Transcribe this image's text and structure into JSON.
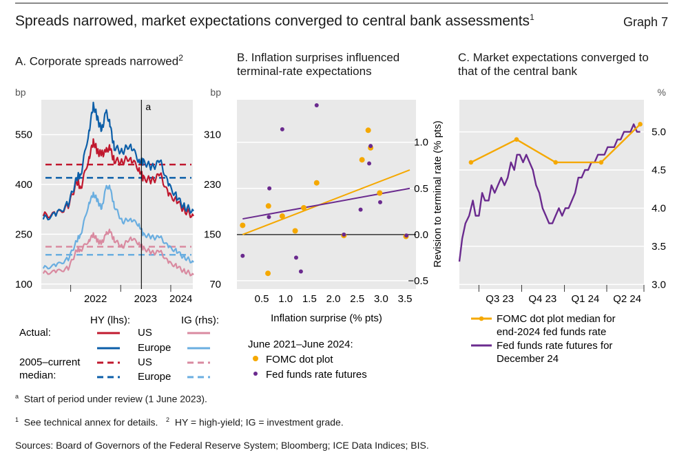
{
  "header": {
    "title": "Spreads narrowed, market expectations converged to central bank assessments",
    "title_sup": "1",
    "graph_label": "Graph 7"
  },
  "panelA": {
    "subtitle": "A. Corporate spreads narrowed",
    "subtitle_sup": "2",
    "left_unit": "bp",
    "right_unit": "bp",
    "annotation": "a",
    "legend": {
      "hy_header": "HY (lhs):",
      "ig_header": "IG (rhs):",
      "actual_label": "Actual:",
      "median_label_line1": "2005–current",
      "median_label_line2": "median:",
      "us": "US",
      "europe": "Europe",
      "colors": {
        "hy_us": "#c0182e",
        "hy_eu": "#0b5ea8",
        "ig_us": "#d98aa0",
        "ig_eu": "#6aaee0"
      }
    }
  },
  "panelB": {
    "subtitle_line1": "B. Inflation surprises influenced",
    "subtitle_line2": "terminal-rate expectations",
    "xlabel": "Inflation surprise (% pts)",
    "ylabel": "Revision to terminal rate (% pts)",
    "legend_title": "June 2021–June 2024:",
    "legend_fomc": "FOMC dot plot",
    "legend_ff": "Fed funds rate futures",
    "colors": {
      "fomc": "#f5a800",
      "ff": "#6a2a8e"
    }
  },
  "panelC": {
    "subtitle_line1": "C. Market expectations converged to",
    "subtitle_line2": "that of the central bank",
    "right_unit": "%",
    "legend_fomc_line1": "FOMC dot plot median for",
    "legend_fomc_line2": "end-2024 fed funds rate",
    "legend_ff_line1": "Fed funds rate futures for",
    "legend_ff_line2": "December 24",
    "colors": {
      "fomc": "#f5a800",
      "ff": "#6a2a8e"
    }
  },
  "footnotes": {
    "a_mark": "a",
    "a_text": "Start of period under review (1 June 2023).",
    "n1_mark": "1",
    "n1_text": "See technical annex for details.",
    "n2_mark": "2",
    "n2_text": "HY = high-yield; IG = investment grade.",
    "sources": "Sources: Board of Governors of the Federal Reserve System; Bloomberg; ICE Data Indices; BIS."
  },
  "chart_data": [
    {
      "type": "line",
      "panel": "A",
      "title": "A. Corporate spreads narrowed",
      "x_tick_labels": [
        "2022",
        "2023",
        "2024"
      ],
      "left_axis": {
        "label": "bp",
        "ticks": [
          100,
          250,
          400,
          550
        ],
        "ylim": [
          85,
          655
        ]
      },
      "right_axis": {
        "label": "bp",
        "ticks": [
          70,
          150,
          230,
          310
        ],
        "ylim": [
          62,
          366
        ]
      },
      "vertical_marker": {
        "date": "2023-06-01",
        "label": "a"
      },
      "x_range": [
        "2021-06-01",
        "2024-06-10"
      ],
      "series": [
        {
          "name": "US",
          "group": "HY (lhs)",
          "axis": "left",
          "kind": "actual",
          "color": "#c0182e",
          "x": [
            "2021-06",
            "2021-09",
            "2021-12",
            "2022-02",
            "2022-03",
            "2022-05",
            "2022-06",
            "2022-07",
            "2022-08",
            "2022-09",
            "2022-10",
            "2022-11",
            "2023-01",
            "2023-03",
            "2023-05",
            "2023-06",
            "2023-08",
            "2023-10",
            "2023-12",
            "2024-02",
            "2024-04",
            "2024-06"
          ],
          "values": [
            305,
            310,
            335,
            410,
            390,
            480,
            530,
            500,
            490,
            500,
            510,
            470,
            470,
            480,
            445,
            420,
            410,
            430,
            370,
            350,
            320,
            305
          ]
        },
        {
          "name": "Europe",
          "group": "HY (lhs)",
          "axis": "left",
          "kind": "actual",
          "color": "#0b5ea8",
          "x": [
            "2021-06",
            "2021-09",
            "2021-12",
            "2022-02",
            "2022-03",
            "2022-05",
            "2022-06",
            "2022-07",
            "2022-08",
            "2022-09",
            "2022-10",
            "2022-11",
            "2023-01",
            "2023-03",
            "2023-05",
            "2023-06",
            "2023-08",
            "2023-10",
            "2023-12",
            "2024-02",
            "2024-04",
            "2024-06"
          ],
          "values": [
            295,
            310,
            340,
            420,
            430,
            560,
            640,
            600,
            560,
            620,
            580,
            510,
            500,
            520,
            470,
            470,
            450,
            470,
            400,
            360,
            330,
            320
          ]
        },
        {
          "name": "US",
          "group": "IG (rhs)",
          "axis": "right",
          "kind": "actual",
          "color": "#d98aa0",
          "x": [
            "2021-06",
            "2021-09",
            "2021-12",
            "2022-02",
            "2022-03",
            "2022-05",
            "2022-06",
            "2022-07",
            "2022-08",
            "2022-09",
            "2022-10",
            "2022-11",
            "2023-01",
            "2023-03",
            "2023-05",
            "2023-06",
            "2023-08",
            "2023-10",
            "2023-12",
            "2024-02",
            "2024-04",
            "2024-06"
          ],
          "values": [
            87,
            90,
            95,
            125,
            125,
            140,
            150,
            140,
            135,
            150,
            155,
            140,
            130,
            145,
            135,
            128,
            120,
            122,
            105,
            98,
            90,
            85
          ]
        },
        {
          "name": "Europe",
          "group": "IG (rhs)",
          "axis": "right",
          "kind": "actual",
          "color": "#6aaee0",
          "x": [
            "2021-06",
            "2021-09",
            "2021-12",
            "2022-02",
            "2022-03",
            "2022-05",
            "2022-06",
            "2022-07",
            "2022-08",
            "2022-09",
            "2022-10",
            "2022-11",
            "2023-01",
            "2023-03",
            "2023-05",
            "2023-06",
            "2023-08",
            "2023-10",
            "2023-12",
            "2024-02",
            "2024-04",
            "2024-06"
          ],
          "values": [
            95,
            100,
            110,
            140,
            150,
            200,
            215,
            205,
            190,
            225,
            225,
            195,
            170,
            175,
            165,
            150,
            145,
            145,
            130,
            122,
            112,
            105
          ]
        },
        {
          "name": "US",
          "group": "HY (lhs)",
          "axis": "left",
          "kind": "2005–current median",
          "color": "#c0182e",
          "values": [
            460
          ]
        },
        {
          "name": "Europe",
          "group": "HY (lhs)",
          "axis": "left",
          "kind": "2005–current median",
          "color": "#0b5ea8",
          "values": [
            420
          ]
        },
        {
          "name": "US",
          "group": "IG (rhs)",
          "axis": "right",
          "kind": "2005–current median",
          "color": "#d98aa0",
          "values": [
            130
          ]
        },
        {
          "name": "Europe",
          "group": "IG (rhs)",
          "axis": "right",
          "kind": "2005–current median",
          "color": "#6aaee0",
          "values": [
            117
          ]
        }
      ]
    },
    {
      "type": "scatter",
      "panel": "B",
      "title": "B. Inflation surprises influenced terminal-rate expectations",
      "xlabel": "Inflation surprise (% pts)",
      "ylabel": "Revision to terminal rate (% pts)",
      "x_ticks": [
        0.5,
        1.0,
        1.5,
        2.0,
        2.5,
        3.0,
        3.5
      ],
      "y_ticks": [
        -0.5,
        0.0,
        0.5,
        1.0
      ],
      "xlim": [
        -0.02,
        3.73
      ],
      "ylim": [
        -0.59,
        1.46
      ],
      "series": [
        {
          "name": "FOMC dot plot",
          "color": "#f5a800",
          "points": [
            [
              0.1,
              0.1
            ],
            [
              0.64,
              0.31
            ],
            [
              0.63,
              -0.42
            ],
            [
              0.93,
              0.2
            ],
            [
              1.2,
              0.04
            ],
            [
              1.38,
              0.29
            ],
            [
              1.65,
              0.56
            ],
            [
              2.22,
              -0.01
            ],
            [
              2.6,
              0.81
            ],
            [
              2.73,
              1.13
            ],
            [
              2.78,
              0.94
            ],
            [
              2.97,
              0.45
            ],
            [
              3.52,
              -0.02
            ]
          ]
        },
        {
          "name": "Fed funds rate futures",
          "color": "#6a2a8e",
          "points": [
            [
              0.1,
              -0.23
            ],
            [
              0.66,
              0.5
            ],
            [
              0.65,
              0.19
            ],
            [
              0.93,
              1.14
            ],
            [
              1.22,
              -0.25
            ],
            [
              1.32,
              -0.4
            ],
            [
              1.65,
              1.4
            ],
            [
              2.22,
              0.0
            ],
            [
              2.57,
              0.27
            ],
            [
              2.75,
              0.77
            ],
            [
              2.78,
              0.96
            ],
            [
              2.98,
              0.35
            ],
            [
              3.53,
              -0.01
            ]
          ]
        },
        {
          "name": "",
          "kind": "fit",
          "color": "#f5a800",
          "line": [
            [
              0.1,
              0.0
            ],
            [
              3.6,
              0.7
            ]
          ]
        },
        {
          "name": "",
          "kind": "fit",
          "color": "#6a2a8e",
          "line": [
            [
              0.1,
              0.17
            ],
            [
              3.6,
              0.5
            ]
          ]
        }
      ]
    },
    {
      "type": "line",
      "panel": "C",
      "title": "C. Market expectations converged to that of the central bank",
      "right_axis": {
        "label": "%",
        "ticks": [
          3.0,
          3.5,
          4.0,
          4.5,
          5.0
        ],
        "ylim": [
          2.94,
          5.42
        ]
      },
      "x_tick_labels": [
        "Q3 23",
        "Q4 23",
        "Q1 24",
        "Q2 24"
      ],
      "x_range": [
        "2023-05-20",
        "2024-06-20"
      ],
      "series": [
        {
          "name": "FOMC dot plot median for end-2024 fed funds rate",
          "color": "#f5a800",
          "x": [
            "2023-06-14",
            "2023-09-20",
            "2023-12-13",
            "2024-03-20",
            "2024-06-12"
          ],
          "values": [
            4.6,
            4.9,
            4.6,
            4.6,
            5.1
          ]
        },
        {
          "name": "Fed funds rate futures for December 24",
          "color": "#6a2a8e",
          "x": [
            "2023-05-20",
            "2023-05-26",
            "2023-06-02",
            "2023-06-10",
            "2023-06-18",
            "2023-06-24",
            "2023-07-01",
            "2023-07-08",
            "2023-07-14",
            "2023-07-22",
            "2023-07-28",
            "2023-08-04",
            "2023-08-11",
            "2023-08-18",
            "2023-08-25",
            "2023-09-01",
            "2023-09-08",
            "2023-09-15",
            "2023-09-21",
            "2023-09-27",
            "2023-10-04",
            "2023-10-11",
            "2023-10-18",
            "2023-10-25",
            "2023-11-01",
            "2023-11-08",
            "2023-11-15",
            "2023-11-22",
            "2023-11-29",
            "2023-12-06",
            "2023-12-13",
            "2023-12-20",
            "2023-12-27",
            "2024-01-03",
            "2024-01-10",
            "2024-01-17",
            "2024-01-24",
            "2024-01-31",
            "2024-02-07",
            "2024-02-14",
            "2024-02-21",
            "2024-02-28",
            "2024-03-06",
            "2024-03-13",
            "2024-03-20",
            "2024-03-27",
            "2024-04-03",
            "2024-04-10",
            "2024-04-17",
            "2024-04-24",
            "2024-05-01",
            "2024-05-08",
            "2024-05-15",
            "2024-05-22",
            "2024-05-29",
            "2024-06-05",
            "2024-06-12"
          ],
          "values": [
            3.3,
            3.6,
            3.8,
            3.9,
            4.1,
            3.9,
            3.9,
            4.2,
            4.1,
            4.1,
            4.3,
            4.2,
            4.3,
            4.4,
            4.3,
            4.4,
            4.6,
            4.5,
            4.7,
            4.7,
            4.6,
            4.7,
            4.6,
            4.5,
            4.3,
            4.2,
            4.0,
            3.9,
            3.8,
            3.8,
            3.9,
            4.0,
            3.9,
            4.0,
            4.0,
            4.1,
            4.2,
            4.4,
            4.4,
            4.5,
            4.5,
            4.6,
            4.6,
            4.7,
            4.7,
            4.7,
            4.8,
            4.8,
            4.8,
            4.9,
            4.9,
            5.0,
            5.0,
            5.0,
            5.1,
            5.0,
            5.0
          ]
        }
      ]
    }
  ]
}
